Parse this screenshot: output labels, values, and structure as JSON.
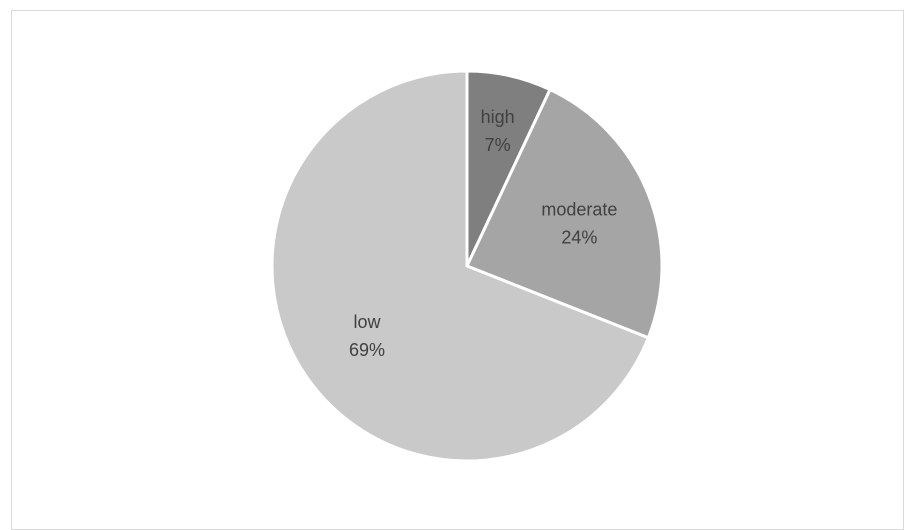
{
  "chart_data": {
    "type": "pie",
    "title": "",
    "slices": [
      {
        "category": "high",
        "value": 7,
        "label": "7%",
        "color": "#7f7f7f"
      },
      {
        "category": "moderate",
        "value": 24,
        "label": "24%",
        "color": "#a5a5a5"
      },
      {
        "category": "low",
        "value": 69,
        "label": "69%",
        "color": "#c9c9c9"
      }
    ],
    "start_angle_deg": 0,
    "direction": "clockwise",
    "legend": "none",
    "label_color": "#404040",
    "border_color": "#d9d9d9"
  }
}
